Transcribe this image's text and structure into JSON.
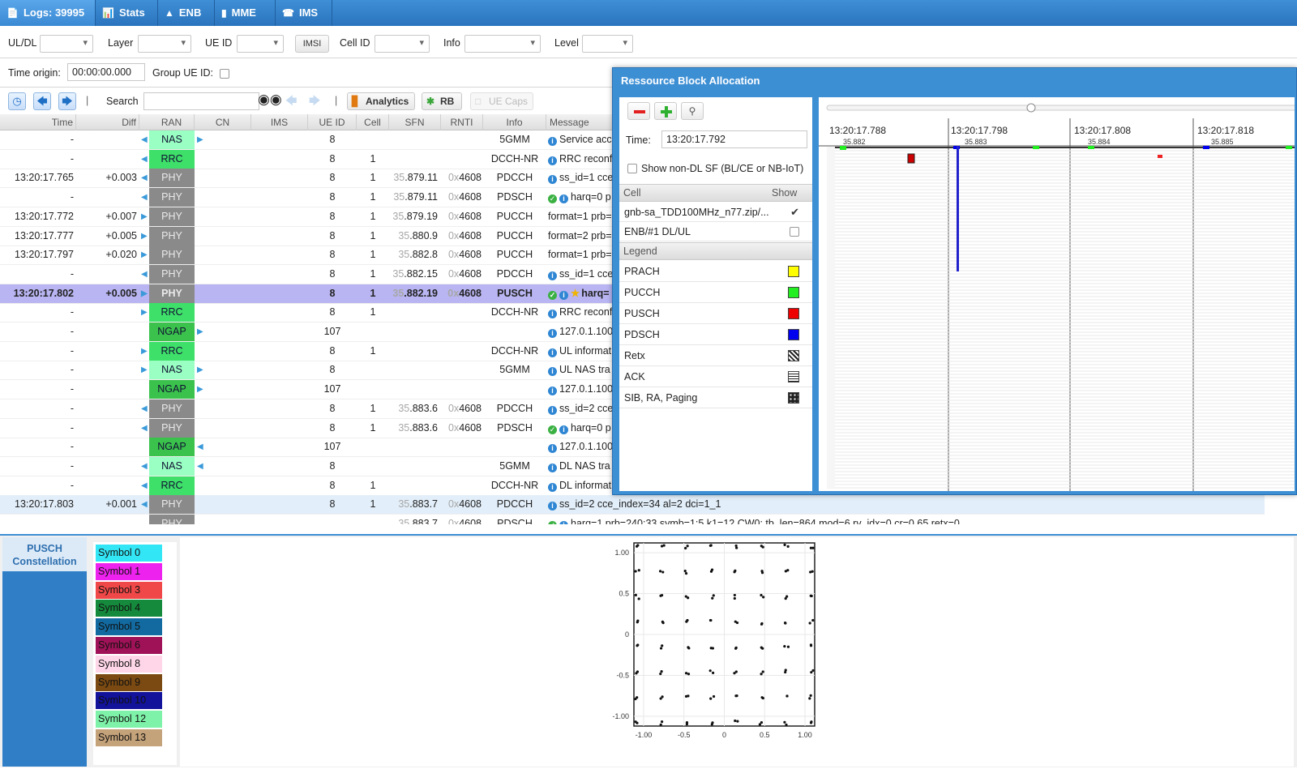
{
  "tabs": [
    {
      "label": "Logs: 39995",
      "icon": "logs-icon",
      "active": true
    },
    {
      "label": "Stats",
      "icon": "stats-chart-icon"
    },
    {
      "label": "ENB",
      "icon": "antenna-icon"
    },
    {
      "label": "MME",
      "icon": "database-icon"
    },
    {
      "label": "IMS",
      "icon": "phone-icon"
    }
  ],
  "filters": {
    "uldl": "UL/DL",
    "layer": "Layer",
    "ueid": "UE ID",
    "imsi": "IMSI",
    "cellid": "Cell ID",
    "info": "Info",
    "level": "Level"
  },
  "origin": {
    "label": "Time origin:",
    "value": "00:00:00.000",
    "group_label": "Group UE ID:"
  },
  "toolbar": {
    "search_label": "Search",
    "analytics": "Analytics",
    "rb": "RB",
    "uecaps": "UE Caps",
    "separator": "|"
  },
  "columns": [
    "Time",
    "Diff",
    "RAN",
    "CN",
    "IMS",
    "UE ID",
    "Cell",
    "SFN",
    "RNTI",
    "Info",
    "Message"
  ],
  "rows": [
    {
      "time": "-",
      "diff": "",
      "ran": "NAS",
      "ran_color": "#99ffc2",
      "ueid": "8",
      "cell": "",
      "sfn_a": "",
      "sfn_b": "",
      "rnti_a": "",
      "rnti_b": "",
      "info": "5GMM",
      "msg": "Service acc",
      "icons": [
        "i"
      ],
      "larr": true,
      "rarr": true
    },
    {
      "time": "-",
      "diff": "",
      "ran": "RRC",
      "ran_color": "#3ee06a",
      "ueid": "8",
      "cell": "1",
      "sfn_a": "",
      "sfn_b": "",
      "rnti_a": "",
      "rnti_b": "",
      "info": "DCCH-NR",
      "msg": "RRC reconf",
      "icons": [
        "i"
      ],
      "larr": true,
      "rarr": false
    },
    {
      "time": "13:20:17.765",
      "diff": "+0.003",
      "ran": "PHY",
      "ran_color": "#8a8a8a",
      "ueid": "8",
      "cell": "1",
      "sfn_a": "35",
      "sfn_b": ".879.11",
      "rnti_a": "0x",
      "rnti_b": "4608",
      "info": "PDCCH",
      "msg": "ss_id=1 cce",
      "icons": [
        "i"
      ],
      "larr": true,
      "rarr": false
    },
    {
      "time": "-",
      "diff": "",
      "ran": "PHY",
      "ran_color": "#8a8a8a",
      "ueid": "8",
      "cell": "1",
      "sfn_a": "35",
      "sfn_b": ".879.11",
      "rnti_a": "0x",
      "rnti_b": "4608",
      "info": "PDSCH",
      "msg": "harq=0 p",
      "icons": [
        "ok",
        "i"
      ],
      "larr": true,
      "rarr": false
    },
    {
      "time": "13:20:17.772",
      "diff": "+0.007",
      "ran": "PHY",
      "ran_color": "#8a8a8a",
      "ueid": "8",
      "cell": "1",
      "sfn_a": "35",
      "sfn_b": ".879.19",
      "rnti_a": "0x",
      "rnti_b": "4608",
      "info": "PUCCH",
      "msg": "format=1 prb=",
      "icons": [],
      "larr": false,
      "rarr": false,
      "rarr_in": true
    },
    {
      "time": "13:20:17.777",
      "diff": "+0.005",
      "ran": "PHY",
      "ran_color": "#8a8a8a",
      "ueid": "8",
      "cell": "1",
      "sfn_a": "35",
      "sfn_b": ".880.9",
      "rnti_a": "0x",
      "rnti_b": "4608",
      "info": "PUCCH",
      "msg": "format=2 prb=",
      "icons": [],
      "larr": false,
      "rarr": false,
      "rarr_in": true
    },
    {
      "time": "13:20:17.797",
      "diff": "+0.020",
      "ran": "PHY",
      "ran_color": "#8a8a8a",
      "ueid": "8",
      "cell": "1",
      "sfn_a": "35",
      "sfn_b": ".882.8",
      "rnti_a": "0x",
      "rnti_b": "4608",
      "info": "PUCCH",
      "msg": "format=1 prb=",
      "icons": [],
      "larr": false,
      "rarr": false,
      "rarr_in": true
    },
    {
      "time": "-",
      "diff": "",
      "ran": "PHY",
      "ran_color": "#8a8a8a",
      "ueid": "8",
      "cell": "1",
      "sfn_a": "35",
      "sfn_b": ".882.15",
      "rnti_a": "0x",
      "rnti_b": "4608",
      "info": "PDCCH",
      "msg": "ss_id=1 cce",
      "icons": [
        "i"
      ],
      "larr": true,
      "rarr": false
    },
    {
      "time": "13:20:17.802",
      "diff": "+0.005",
      "ran": "PHY",
      "ran_color": "#8a8a8a",
      "ueid": "8",
      "cell": "1",
      "sfn_a": "35",
      "sfn_b": ".882.19",
      "rnti_a": "0x",
      "rnti_b": "4608",
      "info": "PUSCH",
      "msg": "harq=",
      "icons": [
        "ok",
        "i",
        "star"
      ],
      "larr": false,
      "rarr": false,
      "rarr_in": true,
      "selected": true
    },
    {
      "time": "-",
      "diff": "",
      "ran": "RRC",
      "ran_color": "#3ee06a",
      "ueid": "8",
      "cell": "1",
      "sfn_a": "",
      "sfn_b": "",
      "rnti_a": "",
      "rnti_b": "",
      "info": "DCCH-NR",
      "msg": "RRC reconf",
      "icons": [
        "i"
      ],
      "larr": false,
      "rarr": false,
      "rarr_in": true
    },
    {
      "time": "-",
      "diff": "",
      "ran": "NGAP",
      "ran_color": "#3ac24c",
      "ueid": "107",
      "cell": "",
      "sfn_a": "",
      "sfn_b": "",
      "rnti_a": "",
      "rnti_b": "",
      "info": "",
      "msg": "127.0.1.100",
      "icons": [
        "i"
      ],
      "larr": false,
      "rarr": true
    },
    {
      "time": "-",
      "diff": "",
      "ran": "RRC",
      "ran_color": "#3ee06a",
      "ueid": "8",
      "cell": "1",
      "sfn_a": "",
      "sfn_b": "",
      "rnti_a": "",
      "rnti_b": "",
      "info": "DCCH-NR",
      "msg": "UL informat",
      "icons": [
        "i"
      ],
      "larr": false,
      "rarr": false,
      "rarr_in": true
    },
    {
      "time": "-",
      "diff": "",
      "ran": "NAS",
      "ran_color": "#99ffc2",
      "ueid": "8",
      "cell": "",
      "sfn_a": "",
      "sfn_b": "",
      "rnti_a": "",
      "rnti_b": "",
      "info": "5GMM",
      "msg": "UL NAS tra",
      "icons": [
        "i"
      ],
      "larr": false,
      "rarr": true,
      "rarr_in": true
    },
    {
      "time": "-",
      "diff": "",
      "ran": "NGAP",
      "ran_color": "#3ac24c",
      "ueid": "107",
      "cell": "",
      "sfn_a": "",
      "sfn_b": "",
      "rnti_a": "",
      "rnti_b": "",
      "info": "",
      "msg": "127.0.1.100",
      "icons": [
        "i"
      ],
      "larr": false,
      "rarr": true
    },
    {
      "time": "-",
      "diff": "",
      "ran": "PHY",
      "ran_color": "#8a8a8a",
      "ueid": "8",
      "cell": "1",
      "sfn_a": "35",
      "sfn_b": ".883.6",
      "rnti_a": "0x",
      "rnti_b": "4608",
      "info": "PDCCH",
      "msg": "ss_id=2 cce",
      "icons": [
        "i"
      ],
      "larr": true,
      "rarr": false
    },
    {
      "time": "-",
      "diff": "",
      "ran": "PHY",
      "ran_color": "#8a8a8a",
      "ueid": "8",
      "cell": "1",
      "sfn_a": "35",
      "sfn_b": ".883.6",
      "rnti_a": "0x",
      "rnti_b": "4608",
      "info": "PDSCH",
      "msg": "harq=0 p",
      "icons": [
        "ok",
        "i"
      ],
      "larr": true,
      "rarr": false
    },
    {
      "time": "-",
      "diff": "",
      "ran": "NGAP",
      "ran_color": "#3ac24c",
      "ueid": "107",
      "cell": "",
      "sfn_a": "",
      "sfn_b": "",
      "rnti_a": "",
      "rnti_b": "",
      "info": "",
      "msg": "127.0.1.100",
      "icons": [
        "i"
      ],
      "larr": false,
      "rarr": false,
      "rarr_left_after": true
    },
    {
      "time": "-",
      "diff": "",
      "ran": "NAS",
      "ran_color": "#99ffc2",
      "ueid": "8",
      "cell": "",
      "sfn_a": "",
      "sfn_b": "",
      "rnti_a": "",
      "rnti_b": "",
      "info": "5GMM",
      "msg": "DL NAS tra",
      "icons": [
        "i"
      ],
      "larr": true,
      "rarr": false,
      "rarr_left_after": true
    },
    {
      "time": "-",
      "diff": "",
      "ran": "RRC",
      "ran_color": "#3ee06a",
      "ueid": "8",
      "cell": "1",
      "sfn_a": "",
      "sfn_b": "",
      "rnti_a": "",
      "rnti_b": "",
      "info": "DCCH-NR",
      "msg": "DL information transfer",
      "icons": [
        "i"
      ],
      "larr": true,
      "rarr": false
    },
    {
      "time": "13:20:17.803",
      "diff": "+0.001",
      "ran": "PHY",
      "ran_color": "#8a8a8a",
      "ueid": "8",
      "cell": "1",
      "sfn_a": "35",
      "sfn_b": ".883.7",
      "rnti_a": "0x",
      "rnti_b": "4608",
      "info": "PDCCH",
      "msg": "ss_id=2 cce_index=34 al=2 dci=1_1",
      "icons": [
        "i"
      ],
      "larr": true,
      "rarr": false,
      "alt": true
    },
    {
      "time": "",
      "diff": "",
      "ran": "PHY",
      "ran_color": "#8a8a8a",
      "ueid": "",
      "cell": "",
      "sfn_a": "35",
      "sfn_b": ".883.7",
      "rnti_a": "0x",
      "rnti_b": "4608",
      "info": "PDSCH",
      "msg": "harq=1 prb=240:33 symb=1:5 k1=12 CW0: tb_len=864 mod=6 rv_idx=0 cr=0.65 retx=0",
      "icons": [
        "ok",
        "i"
      ],
      "larr": false,
      "rarr": false
    }
  ],
  "rb_window": {
    "title": "Ressource Block Allocation",
    "time_label": "Time:",
    "time_value": "13:20:17.792",
    "show_non_dl": "Show non-DL SF (BL/CE or NB-IoT)",
    "cell_header": "Cell",
    "show_header": "Show",
    "cells": [
      {
        "name": "gnb-sa_TDD100MHz_n77.zip/...",
        "checked": true
      },
      {
        "name": "ENB/#1 DL/UL",
        "checked": false
      }
    ],
    "legend_header": "Legend",
    "legend": [
      {
        "name": "PRACH",
        "color": "#ffff00"
      },
      {
        "name": "PUCCH",
        "color": "#22ee22"
      },
      {
        "name": "PUSCH",
        "color": "#ee0000"
      },
      {
        "name": "PDSCH",
        "color": "#0000ee"
      },
      {
        "name": "Retx",
        "pattern": "diag"
      },
      {
        "name": "ACK",
        "pattern": "grid"
      },
      {
        "name": "SIB, RA, Paging",
        "pattern": "dots"
      }
    ],
    "timeline": [
      {
        "time": "13:20:17.788",
        "sfn": "35.882"
      },
      {
        "time": "13:20:17.798",
        "sfn": "35.883"
      },
      {
        "time": "13:20:17.808",
        "sfn": "35.884"
      },
      {
        "time": "13:20:17.818",
        "sfn": "35.885"
      }
    ]
  },
  "bottom": {
    "tab_label_1": "PUSCH",
    "tab_label_2": "Constellation",
    "symbols": [
      {
        "name": "Symbol 0",
        "color": "#33e6f5"
      },
      {
        "name": "Symbol 1",
        "color": "#ee22ee"
      },
      {
        "name": "Symbol 3",
        "color": "#f04848"
      },
      {
        "name": "Symbol 4",
        "color": "#158a3c"
      },
      {
        "name": "Symbol 5",
        "color": "#126aa0"
      },
      {
        "name": "Symbol 6",
        "color": "#a01258"
      },
      {
        "name": "Symbol 8",
        "color": "#ffd6e8"
      },
      {
        "name": "Symbol 9",
        "color": "#7a4a12"
      },
      {
        "name": "Symbol 10",
        "color": "#12129a"
      },
      {
        "name": "Symbol 12",
        "color": "#7ef2a8"
      },
      {
        "name": "Symbol 13",
        "color": "#c4a27a"
      }
    ]
  },
  "chart_data": {
    "type": "scatter",
    "title": "",
    "xlabel": "",
    "ylabel": "",
    "xlim": [
      -1.12,
      1.12
    ],
    "ylim": [
      -1.12,
      1.12
    ],
    "x_ticks": [
      "-1.00",
      "-0.5",
      "0",
      "0.5",
      "1.00"
    ],
    "y_ticks": [
      "1.00",
      "0.5",
      "0",
      "-0.5",
      "-1.00"
    ],
    "grid": true,
    "constellation": "64-QAM",
    "levels": [
      -1.08,
      -0.77,
      -0.46,
      -0.15,
      0.15,
      0.46,
      0.77,
      1.08
    ]
  }
}
